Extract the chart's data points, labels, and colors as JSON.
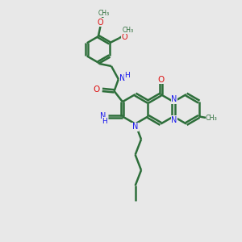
{
  "background_color": "#e8e8e8",
  "bond_color": "#2d6e3a",
  "bond_width": 1.8,
  "n_color": "#1a1aee",
  "o_color": "#dd1111",
  "fig_width": 3.0,
  "fig_height": 3.0,
  "dpi": 100,
  "xlim": [
    0,
    10
  ],
  "ylim": [
    0,
    10
  ]
}
